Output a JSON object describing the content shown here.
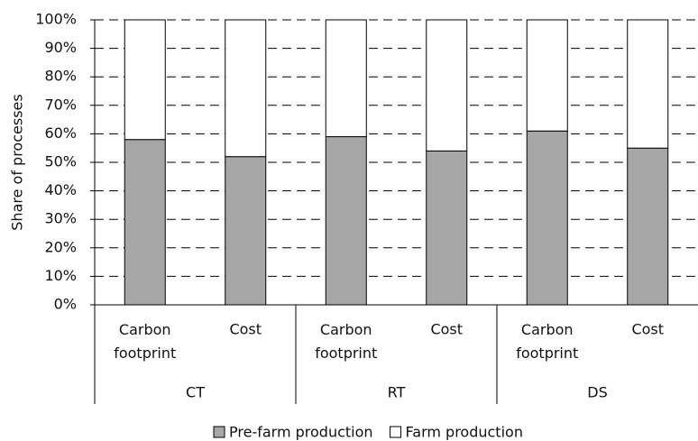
{
  "chart_data": {
    "type": "stacked-bar",
    "y_label": "Share of processes",
    "groups": [
      "CT",
      "RT",
      "DS"
    ],
    "categories": [
      "Carbon footprint",
      "Cost",
      "Carbon footprint",
      "Cost",
      "Carbon footprint",
      "Cost"
    ],
    "series": [
      {
        "name": "Pre-farm production",
        "color": "#a6a6a6",
        "values": [
          58,
          52,
          59,
          54,
          61,
          55
        ]
      },
      {
        "name": "Farm production",
        "color": "#ffffff",
        "values": [
          42,
          48,
          41,
          46,
          39,
          45
        ]
      }
    ],
    "ylim": [
      0,
      100
    ],
    "yticks": [
      {
        "value": 0,
        "label": "0%"
      },
      {
        "value": 10,
        "label": "10%"
      },
      {
        "value": 20,
        "label": "20%"
      },
      {
        "value": 30,
        "label": "30%"
      },
      {
        "value": 40,
        "label": "40%"
      },
      {
        "value": 50,
        "label": "50%"
      },
      {
        "value": 60,
        "label": "60%"
      },
      {
        "value": 70,
        "label": "70%"
      },
      {
        "value": 80,
        "label": "80%"
      },
      {
        "value": 90,
        "label": "90%"
      },
      {
        "value": 100,
        "label": "100%"
      }
    ],
    "grid": true
  }
}
